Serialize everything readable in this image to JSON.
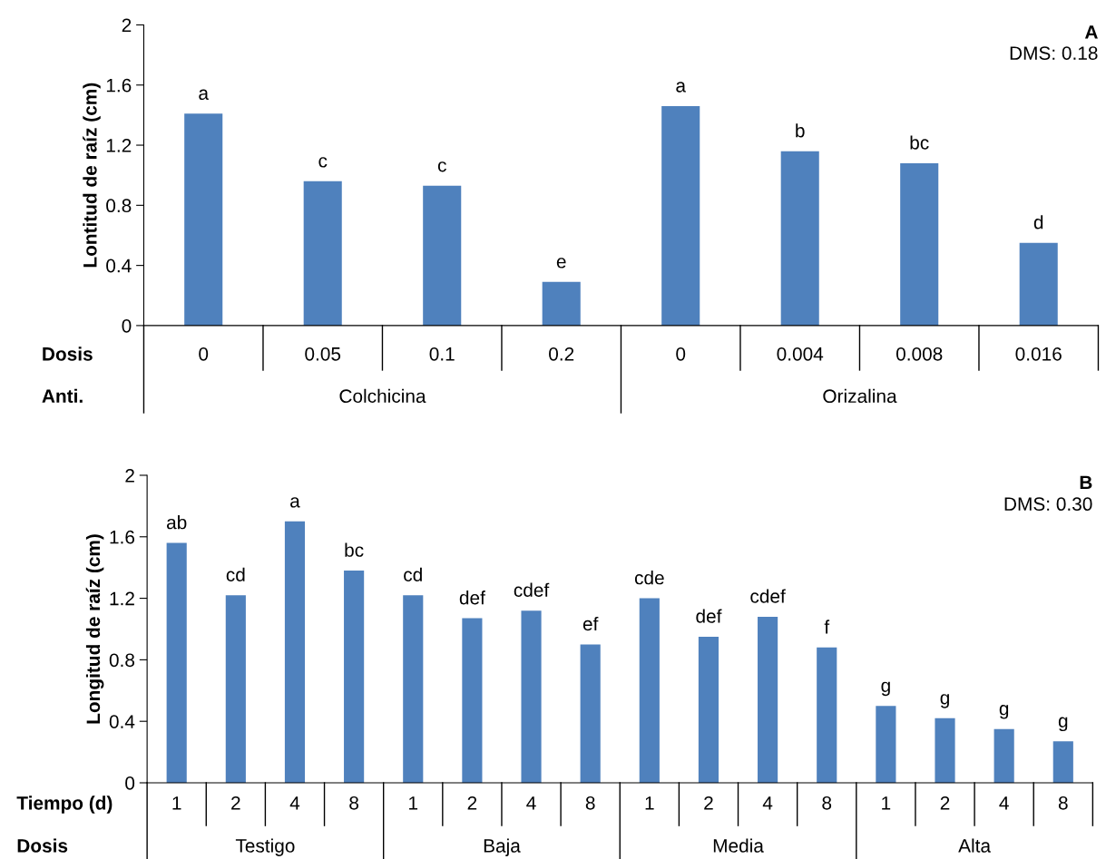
{
  "chart_data": [
    {
      "type": "bar",
      "ylabel": "Lontitud de raíz (cm)",
      "categories": [
        "0",
        "0.05",
        "0.1",
        "0.2",
        "0",
        "0.004",
        "0.008",
        "0.016"
      ],
      "values": [
        1.41,
        0.96,
        0.93,
        0.29,
        1.46,
        1.16,
        1.08,
        0.55
      ],
      "color": "#4f81bd",
      "value_labels": [
        "a",
        "c",
        "c",
        "e",
        "a",
        "b",
        "bc",
        "d"
      ],
      "ylim": [
        0,
        2
      ],
      "yticks": [
        0,
        0.4,
        0.8,
        1.2,
        1.6,
        2
      ],
      "grid": false,
      "legend": false,
      "annotations": [
        "A",
        "DMS: 0.18",
        "Dosis",
        "Anti.",
        "Colchicina",
        "Orizalina"
      ]
    },
    {
      "type": "bar",
      "ylabel": "Longitud de raíz (cm)",
      "categories": [
        "1",
        "2",
        "4",
        "8",
        "1",
        "2",
        "4",
        "8",
        "1",
        "2",
        "4",
        "8",
        "1",
        "2",
        "4",
        "8"
      ],
      "values": [
        1.56,
        1.22,
        1.7,
        1.38,
        1.22,
        1.07,
        1.12,
        0.9,
        1.2,
        0.95,
        1.08,
        0.88,
        0.5,
        0.42,
        0.35,
        0.27
      ],
      "color": "#4f81bd",
      "value_labels": [
        "ab",
        "cd",
        "a",
        "bc",
        "cd",
        "def",
        "cdef",
        "ef",
        "cde",
        "def",
        "cdef",
        "f",
        "g",
        "g",
        "g",
        "g"
      ],
      "ylim": [
        0,
        2
      ],
      "yticks": [
        0,
        0.4,
        0.8,
        1.2,
        1.6,
        2
      ],
      "grid": false,
      "legend": false,
      "annotations": [
        "B",
        "DMS: 0.30",
        "Tiempo (d)",
        "Dosis",
        "Testigo",
        "Baja",
        "Media",
        "Alta"
      ]
    }
  ]
}
